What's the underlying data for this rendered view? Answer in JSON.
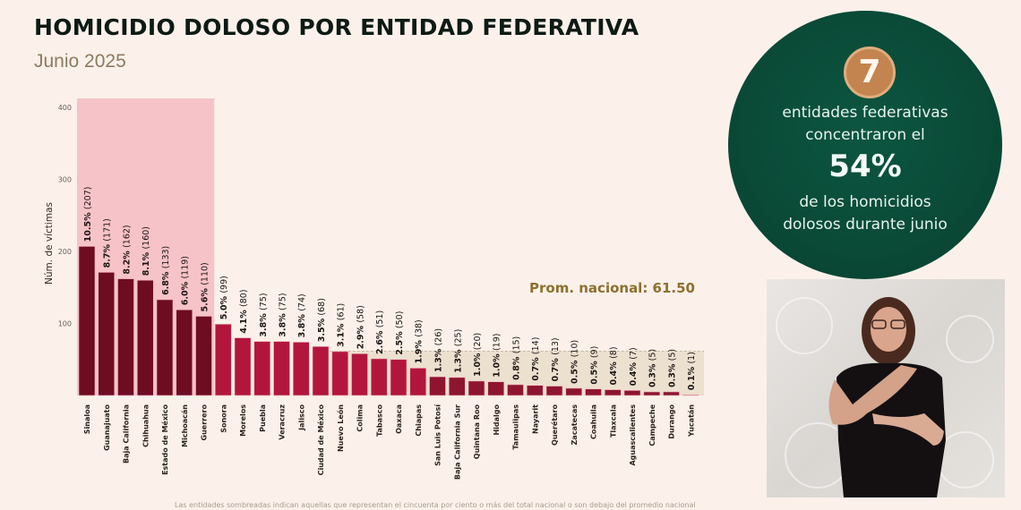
{
  "header": {
    "title": "HOMICIDIO DOLOSO POR ENTIDAD FEDERATIVA",
    "subtitle": "Junio 2025"
  },
  "callout": {
    "number": "7",
    "line1": "entidades federativas",
    "line2": "concentraron el",
    "percent": "54%",
    "line3": "de los homicidios",
    "line4": "dolosos durante junio"
  },
  "interpreter_video": {
    "description": "Sign language interpreter"
  },
  "footnote": "Las entidades sombreadas indican aquellas que representan el cincuenta por ciento o más del total nacional o son debajo del promedio nacional",
  "colors": {
    "top_bars": "#6e0c22",
    "mid_bars": "#b3163c",
    "low_bars": "#8e1530",
    "highlight_band": "#f6c3c8",
    "below_avg_band": "#ece0cf",
    "avg_label": "#8e6f2e",
    "callout_bg": "#0a4a37",
    "badge_bg": "#c48450"
  },
  "chart_data": {
    "type": "bar",
    "title": "HOMICIDIO DOLOSO POR ENTIDAD FEDERATIVA",
    "subtitle": "Junio 2025",
    "xlabel": "",
    "ylabel": "Núm. de víctimas",
    "ylim": [
      0,
      400
    ],
    "yticks": [
      100,
      200,
      300,
      400
    ],
    "grid": false,
    "categories": [
      "Sinaloa",
      "Guanajuato",
      "Baja California",
      "Chihuahua",
      "Estado de México",
      "Michoacán",
      "Guerrero",
      "Sonora",
      "Morelos",
      "Puebla",
      "Veracruz",
      "Jalisco",
      "Ciudad de México",
      "Nuevo León",
      "Colima",
      "Tabasco",
      "Oaxaca",
      "Chiapas",
      "San Luis Potosí",
      "Baja California Sur",
      "Quintana Roo",
      "Hidalgo",
      "Tamaulipas",
      "Nayarit",
      "Querétaro",
      "Zacatecas",
      "Coahuila",
      "Tlaxcala",
      "Aguascalientes",
      "Campeche",
      "Durango",
      "Yucatán"
    ],
    "values": [
      207,
      171,
      162,
      160,
      133,
      119,
      110,
      99,
      80,
      75,
      75,
      74,
      68,
      61,
      58,
      51,
      50,
      38,
      26,
      25,
      20,
      19,
      15,
      14,
      13,
      10,
      9,
      8,
      7,
      5,
      5,
      1
    ],
    "percent_labels": [
      "10.5%",
      "8.7%",
      "8.2%",
      "8.1%",
      "6.8%",
      "6.0%",
      "5.6%",
      "5.0%",
      "4.1%",
      "3.8%",
      "3.8%",
      "3.8%",
      "3.5%",
      "3.1%",
      "2.9%",
      "2.6%",
      "2.5%",
      "1.9%",
      "1.3%",
      "1.3%",
      "1.0%",
      "1.0%",
      "0.8%",
      "0.7%",
      "0.7%",
      "0.5%",
      "0.5%",
      "0.4%",
      "0.4%",
      "0.3%",
      "0.3%",
      "0.1%"
    ],
    "highlighted_top_count": 7,
    "national_average": 61.5,
    "average_label": "Prom. nacional: 61.50"
  }
}
